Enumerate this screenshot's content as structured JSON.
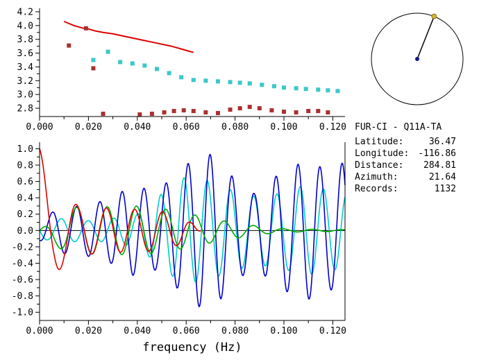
{
  "figure": {
    "background": "#ffffff"
  },
  "info": {
    "title": "FUR-CI - Q11A-TA",
    "rows": [
      {
        "label": "Latitude:",
        "value": "36.47"
      },
      {
        "label": "Longitude:",
        "value": "-116.86"
      },
      {
        "label": "Distance:",
        "value": "284.81"
      },
      {
        "label": "Azimuth:",
        "value": "21.64"
      },
      {
        "label": "Records:",
        "value": "1132"
      }
    ]
  },
  "azimuth_dial": {
    "azimuth_deg": 21.64,
    "circle_color": "#000000",
    "line_color": "#000000",
    "center_dot_color": "#16168c",
    "end_dot_color": "#d2b82d"
  },
  "chart_data": [
    {
      "id": "top",
      "type": "scatter",
      "title": "",
      "xlabel": "",
      "ylabel": "",
      "xlim": [
        0,
        0.125
      ],
      "ylim": [
        2.68,
        4.25
      ],
      "grid": false,
      "frame_right": false,
      "zero_line": false,
      "xticks": [
        0,
        0.02,
        0.04,
        0.06,
        0.08,
        0.1,
        0.12
      ],
      "xtick_labels": [
        "0.000",
        "0.020",
        "0.040",
        "0.060",
        "0.080",
        "0.100",
        "0.120"
      ],
      "xminor": [
        0.01,
        0.03,
        0.05,
        0.07,
        0.09,
        0.11
      ],
      "yticks": [
        2.8,
        3.0,
        3.2,
        3.4,
        3.6,
        3.8,
        4.0,
        4.2
      ],
      "ytick_labels": [
        "2.8",
        "3.0",
        "3.2",
        "3.4",
        "3.6",
        "3.8",
        "4.0",
        "4.2"
      ],
      "yminor": [
        2.9,
        3.1,
        3.3,
        3.5,
        3.7,
        3.9,
        4.1
      ],
      "series": [
        {
          "name": "reference-dispersion-curve",
          "plot": "line",
          "color": "#e00000",
          "width": 2,
          "x": [
            0.01,
            0.012,
            0.014,
            0.016,
            0.018,
            0.02,
            0.023,
            0.026,
            0.03,
            0.034,
            0.038,
            0.042,
            0.046,
            0.05,
            0.054,
            0.058,
            0.061,
            0.063
          ],
          "y": [
            4.06,
            4.03,
            4.0,
            3.98,
            3.96,
            3.95,
            3.92,
            3.9,
            3.88,
            3.85,
            3.82,
            3.79,
            3.76,
            3.73,
            3.7,
            3.66,
            3.63,
            3.61
          ]
        },
        {
          "name": "group-velocity-measurements",
          "plot": "square",
          "color": "#3cc8c8",
          "size": 6,
          "x": [
            0.022,
            0.028,
            0.033,
            0.038,
            0.043,
            0.048,
            0.053,
            0.058,
            0.063,
            0.068,
            0.073,
            0.078,
            0.082,
            0.086,
            0.091,
            0.096,
            0.1,
            0.105,
            0.109,
            0.114,
            0.118,
            0.122
          ],
          "y": [
            3.5,
            3.62,
            3.47,
            3.45,
            3.42,
            3.37,
            3.31,
            3.25,
            3.21,
            3.2,
            3.19,
            3.18,
            3.17,
            3.16,
            3.14,
            3.12,
            3.1,
            3.09,
            3.08,
            3.07,
            3.06,
            3.05
          ]
        },
        {
          "name": "phase-velocity-measurements",
          "plot": "square",
          "color": "#aa3030",
          "size": 6,
          "x": [
            0.012,
            0.019,
            0.022,
            0.026,
            0.041,
            0.046,
            0.051,
            0.055,
            0.059,
            0.063,
            0.068,
            0.073,
            0.078,
            0.082,
            0.086,
            0.09,
            0.095,
            0.1,
            0.105,
            0.11,
            0.114,
            0.118
          ],
          "y": [
            3.71,
            3.96,
            3.38,
            2.72,
            2.71,
            2.72,
            2.74,
            2.76,
            2.77,
            2.76,
            2.74,
            2.73,
            2.78,
            2.8,
            2.82,
            2.8,
            2.77,
            2.75,
            2.74,
            2.76,
            2.76,
            2.74
          ]
        }
      ]
    },
    {
      "id": "bottom",
      "type": "line",
      "title": "",
      "xlabel": "frequency (Hz)",
      "ylabel": "",
      "xlim": [
        0,
        0.125
      ],
      "ylim": [
        -1.1,
        1.08
      ],
      "grid": false,
      "frame_right": true,
      "zero_line": true,
      "xticks": [
        0,
        0.02,
        0.04,
        0.06,
        0.08,
        0.1,
        0.12
      ],
      "xtick_labels": [
        "0.000",
        "0.020",
        "0.040",
        "0.060",
        "0.080",
        "0.100",
        "0.120"
      ],
      "xminor": [
        0.01,
        0.03,
        0.05,
        0.07,
        0.09,
        0.11
      ],
      "yticks": [
        -1.0,
        -0.8,
        -0.6,
        -0.4,
        -0.2,
        0.0,
        0.2,
        0.4,
        0.6,
        0.8,
        1.0
      ],
      "ytick_labels": [
        "-1.0",
        "-0.8",
        "-0.6",
        "-0.4",
        "-0.2",
        "0.0",
        "0.2",
        "0.4",
        "0.6",
        "0.8",
        "1.0"
      ],
      "yminor": [
        -0.9,
        -0.7,
        -0.5,
        -0.3,
        -0.1,
        0.1,
        0.3,
        0.5,
        0.7,
        0.9
      ],
      "series": [
        {
          "name": "cross-spectrum-cyan",
          "plot": "synth",
          "color": "#00cccc",
          "width": 1.6,
          "synth": {
            "phase0": 1.5708,
            "period_pts": [
              [
                0,
                0.012
              ],
              [
                0.04,
                0.0095
              ],
              [
                0.125,
                0.0095
              ]
            ],
            "env": [
              [
                0,
                0.1
              ],
              [
                0.01,
                0.15
              ],
              [
                0.02,
                0.12
              ],
              [
                0.03,
                0.15
              ],
              [
                0.04,
                0.2
              ],
              [
                0.05,
                0.45
              ],
              [
                0.058,
                0.65
              ],
              [
                0.068,
                0.62
              ],
              [
                0.078,
                0.5
              ],
              [
                0.088,
                0.42
              ],
              [
                0.098,
                0.45
              ],
              [
                0.108,
                0.55
              ],
              [
                0.118,
                0.5
              ],
              [
                0.125,
                0.45
              ]
            ]
          }
        },
        {
          "name": "cross-spectrum-blue",
          "plot": "synth",
          "color": "#0000cc",
          "width": 1.6,
          "synth": {
            "phase0": 3.1416,
            "period_pts": [
              [
                0,
                0.0105
              ],
              [
                0.03,
                0.009
              ],
              [
                0.125,
                0.009
              ]
            ],
            "env": [
              [
                0,
                0.12
              ],
              [
                0.008,
                0.28
              ],
              [
                0.018,
                0.3
              ],
              [
                0.028,
                0.38
              ],
              [
                0.038,
                0.55
              ],
              [
                0.048,
                0.48
              ],
              [
                0.058,
                0.75
              ],
              [
                0.066,
                0.95
              ],
              [
                0.072,
                0.92
              ],
              [
                0.08,
                0.62
              ],
              [
                0.088,
                0.45
              ],
              [
                0.096,
                0.65
              ],
              [
                0.104,
                0.8
              ],
              [
                0.112,
                0.85
              ],
              [
                0.118,
                0.7
              ],
              [
                0.125,
                0.85
              ]
            ]
          }
        },
        {
          "name": "smoothed-correlation-green",
          "plot": "synth",
          "color": "#00aa00",
          "width": 1.6,
          "synth": {
            "phase0": 0,
            "period_pts": [
              [
                0,
                0.019
              ],
              [
                0.012,
                0.013
              ],
              [
                0.03,
                0.012
              ],
              [
                0.125,
                0.012
              ]
            ],
            "env": [
              [
                0,
                0.0
              ],
              [
                0.006,
                0.18
              ],
              [
                0.012,
                0.28
              ],
              [
                0.04,
                0.3
              ],
              [
                0.052,
                0.26
              ],
              [
                0.062,
                0.2
              ],
              [
                0.075,
                0.12
              ],
              [
                0.09,
                0.05
              ],
              [
                0.1,
                0.02
              ],
              [
                0.125,
                0.01
              ]
            ]
          }
        },
        {
          "name": "correlation-red",
          "plot": "synth",
          "color": "#dd0000",
          "width": 1.6,
          "synth": {
            "phase0": 0,
            "period_pts": [
              [
                0,
                0.019
              ],
              [
                0.012,
                0.013
              ],
              [
                0.03,
                0.0115
              ],
              [
                0.066,
                0.0115
              ]
            ],
            "env": [
              [
                0,
                1.0
              ],
              [
                0.006,
                0.55
              ],
              [
                0.01,
                0.42
              ],
              [
                0.016,
                0.3
              ],
              [
                0.03,
                0.27
              ],
              [
                0.048,
                0.25
              ],
              [
                0.058,
                0.17
              ],
              [
                0.064,
                0.06
              ],
              [
                0.066,
                0.0
              ]
            ]
          }
        }
      ]
    }
  ]
}
